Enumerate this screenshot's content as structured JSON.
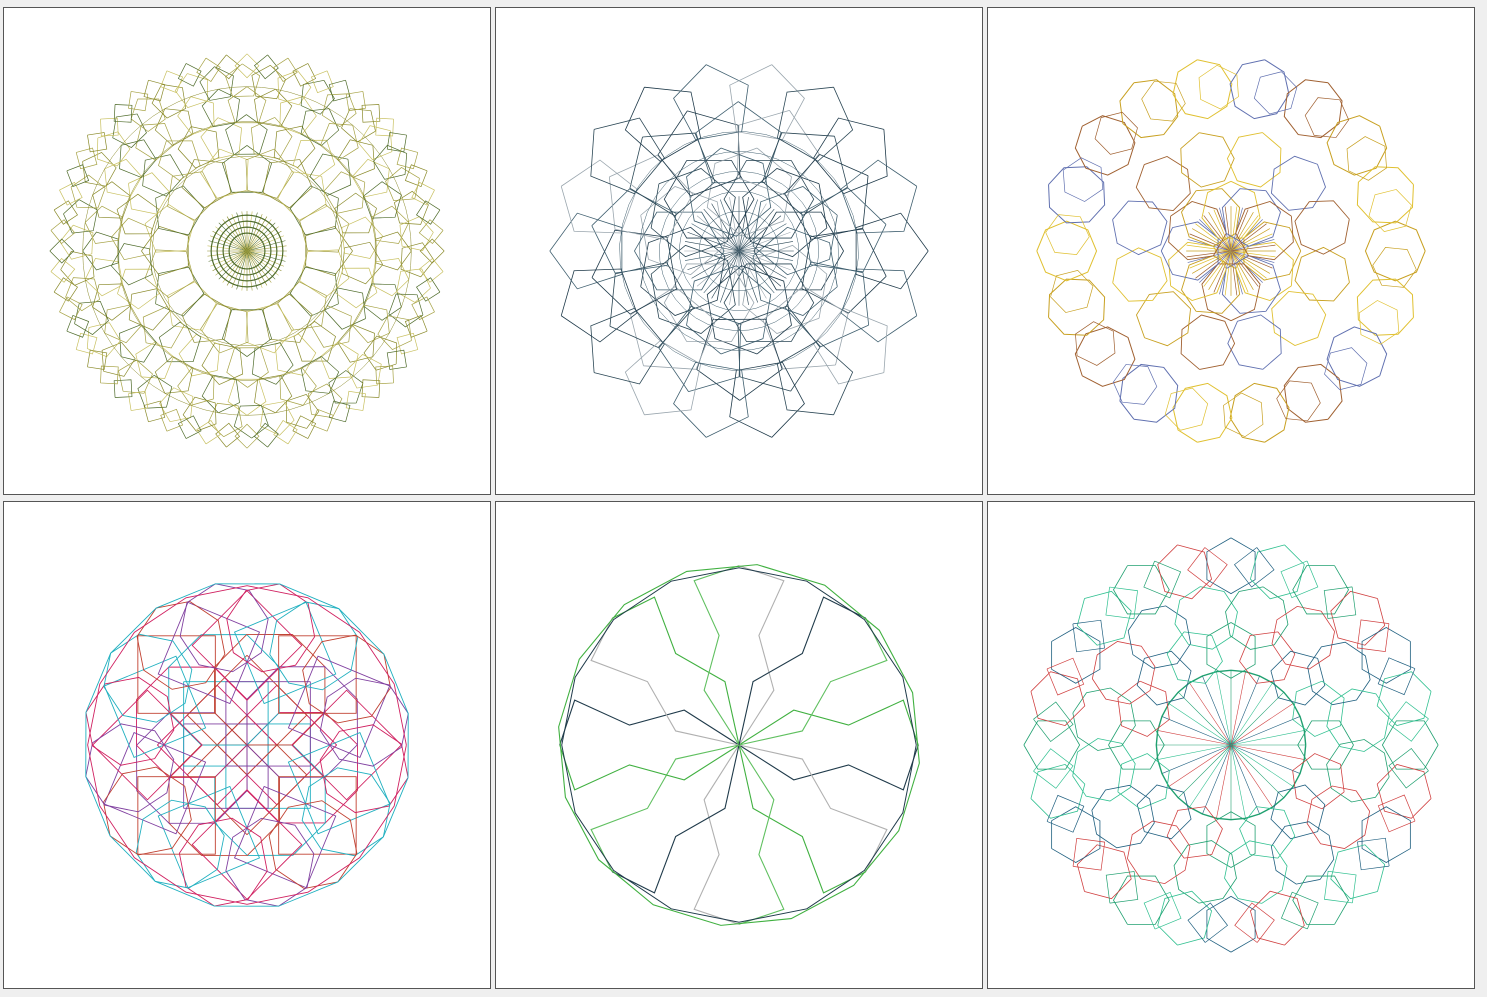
{
  "gallery": {
    "panels": [
      {
        "colors": [
          "#8a8a2a",
          "#c8c060",
          "#4e6b2a",
          "#a6a244"
        ],
        "symmetry": 24,
        "style": "dense-rings"
      },
      {
        "colors": [
          "#1f3a4a",
          "#3f5f6f",
          "#9aa6ae",
          "#2b4755"
        ],
        "symmetry": 18,
        "style": "star-web"
      },
      {
        "colors": [
          "#c8a020",
          "#e0c030",
          "#6070b0",
          "#a06030"
        ],
        "symmetry": 12,
        "style": "petal-rings"
      },
      {
        "colors": [
          "#d02060",
          "#20b0c0",
          "#c04030",
          "#8040a0"
        ],
        "symmetry": 8,
        "style": "square-lattice"
      },
      {
        "colors": [
          "#1f3a4a",
          "#40b040",
          "#b0b0b0",
          "#60c060"
        ],
        "symmetry": 8,
        "style": "rosette"
      },
      {
        "colors": [
          "#20a070",
          "#d04040",
          "#206080",
          "#30c090"
        ],
        "symmetry": 16,
        "style": "tiled-rings"
      }
    ]
  }
}
